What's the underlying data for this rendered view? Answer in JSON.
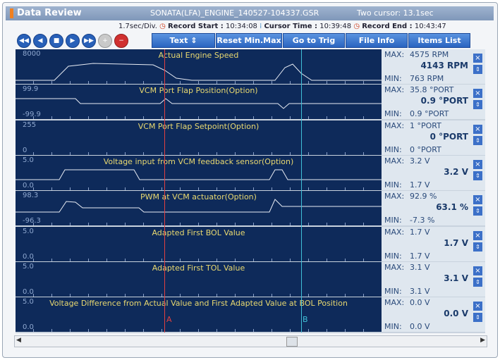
{
  "header": {
    "title": "Data Review",
    "file": "SONATA(LFA)_ENGINE_140527-104337.GSR",
    "cursor_info": "Two cursor: 13.1sec"
  },
  "info_row": {
    "division": "1.7sec/Div.",
    "record_start_label": "Record Start :",
    "record_start": "10:34:08",
    "cursor_time_label": "Cursor Time :",
    "cursor_time": "10:39:48",
    "record_end_label": "Record End :",
    "record_end": "10:43:47"
  },
  "toolbar": {
    "buttons": [
      "Text",
      "Reset Min.Max",
      "Go to Trig",
      "File Info",
      "Items List"
    ]
  },
  "channels": [
    {
      "top": "8000",
      "bottom": "",
      "title": "Actual Engine Speed",
      "max_label": "MAX:",
      "max": "4575 RPM",
      "current": "4143 RPM",
      "min_label": "MIN:",
      "min": "763 RPM"
    },
    {
      "top": "99.9",
      "bottom": "-99.9",
      "title": "VCM Port Flap Position(Option)",
      "max_label": "MAX:",
      "max": "35.8 °PORT",
      "current": "0.9 °PORT",
      "min_label": "MIN:",
      "min": "0.9 °PORT"
    },
    {
      "top": "255",
      "bottom": "0",
      "title": "VCM Port Flap Setpoint(Option)",
      "max_label": "MAX:",
      "max": "1 °PORT",
      "current": "0 °PORT",
      "min_label": "MIN:",
      "min": "0 °PORT"
    },
    {
      "top": "5.0",
      "bottom": "0.0",
      "title": "Voltage input from VCM feedback sensor(Option)",
      "max_label": "MAX:",
      "max": "3.2 V",
      "current": "3.2 V",
      "min_label": "MIN:",
      "min": "1.7 V"
    },
    {
      "top": "98.3",
      "bottom": "-96.3",
      "title": "PWM at VCM actuator(Option)",
      "max_label": "MAX:",
      "max": "92.9 %",
      "current": "63.1 %",
      "min_label": "MIN:",
      "min": "-7.3 %"
    },
    {
      "top": "5.0",
      "bottom": "0.0",
      "title": "Adapted First BOL Value",
      "max_label": "MAX:",
      "max": "1.7 V",
      "current": "1.7 V",
      "min_label": "MIN:",
      "min": "1.7 V"
    },
    {
      "top": "5.0",
      "bottom": "0.0",
      "title": "Adapted First TOL Value",
      "max_label": "MAX:",
      "max": "3.1 V",
      "current": "3.1 V",
      "min_label": "MIN:",
      "min": "3.1 V"
    },
    {
      "top": "5.0",
      "bottom": "0.0",
      "title": "Voltage Difference from Actual Value and First Adapted Value at BOL Position",
      "max_label": "MAX:",
      "max": "0.0 V",
      "current": "0.0 V",
      "min_label": "MIN:",
      "min": "0.0 V"
    }
  ],
  "cursors": {
    "a": "A",
    "b": "B"
  }
}
